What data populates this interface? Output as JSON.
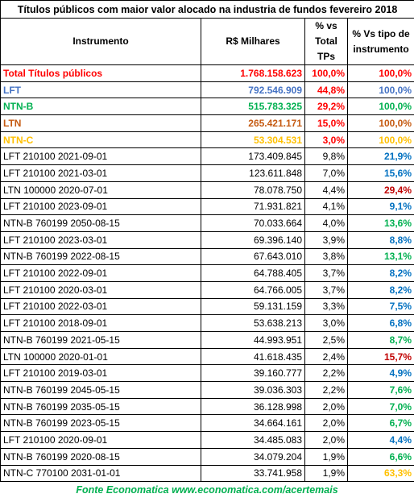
{
  "table": {
    "title": "Títulos públicos com maior valor alocado na industria de fundos fevereiro 2018",
    "header": [
      "Instrumento",
      "R$ Milhares",
      "% vs Total TPs",
      "% Vs tipo de instrumento"
    ],
    "rows": [
      {
        "cells": [
          "Total Títulos públicos",
          "1.768.158.623",
          "100,0%",
          "100,0%"
        ],
        "bold": true,
        "colors": [
          "#ff0000",
          "#ff0000",
          "#ff0000",
          "#ff0000"
        ]
      },
      {
        "cells": [
          "LFT",
          "792.546.909",
          "44,8%",
          "100,0%"
        ],
        "bold": true,
        "colors": [
          "#4472c4",
          "#4472c4",
          "#ff0000",
          "#4472c4"
        ]
      },
      {
        "cells": [
          "NTN-B",
          "515.783.325",
          "29,2%",
          "100,0%"
        ],
        "bold": true,
        "colors": [
          "#00b050",
          "#00b050",
          "#ff0000",
          "#00b050"
        ]
      },
      {
        "cells": [
          "LTN",
          "265.421.171",
          "15,0%",
          "100,0%"
        ],
        "bold": true,
        "colors": [
          "#c55a11",
          "#c55a11",
          "#ff0000",
          "#c55a11"
        ]
      },
      {
        "cells": [
          "NTN-C",
          "53.304.531",
          "3,0%",
          "100,0%"
        ],
        "bold": true,
        "colors": [
          "#ffc000",
          "#ffc000",
          "#ff0000",
          "#ffc000"
        ]
      },
      {
        "cells": [
          "LFT 210100 2021-09-01",
          "173.409.845",
          "9,8%",
          "21,9%"
        ],
        "bold": false,
        "colors": [
          "#000",
          "#000",
          "#000",
          "#0070c0"
        ]
      },
      {
        "cells": [
          "LFT 210100 2021-03-01",
          "123.611.848",
          "7,0%",
          "15,6%"
        ],
        "bold": false,
        "colors": [
          "#000",
          "#000",
          "#000",
          "#0070c0"
        ]
      },
      {
        "cells": [
          "LTN 100000 2020-07-01",
          "78.078.750",
          "4,4%",
          "29,4%"
        ],
        "bold": false,
        "colors": [
          "#000",
          "#000",
          "#000",
          "#c00000"
        ]
      },
      {
        "cells": [
          "LFT 210100 2023-09-01",
          "71.931.821",
          "4,1%",
          "9,1%"
        ],
        "bold": false,
        "colors": [
          "#000",
          "#000",
          "#000",
          "#0070c0"
        ]
      },
      {
        "cells": [
          "NTN-B 760199 2050-08-15",
          "70.033.664",
          "4,0%",
          "13,6%"
        ],
        "bold": false,
        "colors": [
          "#000",
          "#000",
          "#000",
          "#00b050"
        ]
      },
      {
        "cells": [
          "LFT 210100 2023-03-01",
          "69.396.140",
          "3,9%",
          "8,8%"
        ],
        "bold": false,
        "colors": [
          "#000",
          "#000",
          "#000",
          "#0070c0"
        ]
      },
      {
        "cells": [
          "NTN-B 760199 2022-08-15",
          "67.643.010",
          "3,8%",
          "13,1%"
        ],
        "bold": false,
        "colors": [
          "#000",
          "#000",
          "#000",
          "#00b050"
        ]
      },
      {
        "cells": [
          "LFT 210100 2022-09-01",
          "64.788.405",
          "3,7%",
          "8,2%"
        ],
        "bold": false,
        "colors": [
          "#000",
          "#000",
          "#000",
          "#0070c0"
        ]
      },
      {
        "cells": [
          "LFT 210100 2020-03-01",
          "64.766.005",
          "3,7%",
          "8,2%"
        ],
        "bold": false,
        "colors": [
          "#000",
          "#000",
          "#000",
          "#0070c0"
        ]
      },
      {
        "cells": [
          "LFT 210100 2022-03-01",
          "59.131.159",
          "3,3%",
          "7,5%"
        ],
        "bold": false,
        "colors": [
          "#000",
          "#000",
          "#000",
          "#0070c0"
        ]
      },
      {
        "cells": [
          "LFT 210100 2018-09-01",
          "53.638.213",
          "3,0%",
          "6,8%"
        ],
        "bold": false,
        "colors": [
          "#000",
          "#000",
          "#000",
          "#0070c0"
        ]
      },
      {
        "cells": [
          "NTN-B 760199 2021-05-15",
          "44.993.951",
          "2,5%",
          "8,7%"
        ],
        "bold": false,
        "colors": [
          "#000",
          "#000",
          "#000",
          "#00b050"
        ]
      },
      {
        "cells": [
          "LTN 100000 2020-01-01",
          "41.618.435",
          "2,4%",
          "15,7%"
        ],
        "bold": false,
        "colors": [
          "#000",
          "#000",
          "#000",
          "#c00000"
        ]
      },
      {
        "cells": [
          "LFT 210100 2019-03-01",
          "39.160.777",
          "2,2%",
          "4,9%"
        ],
        "bold": false,
        "colors": [
          "#000",
          "#000",
          "#000",
          "#0070c0"
        ]
      },
      {
        "cells": [
          "NTN-B 760199 2045-05-15",
          "39.036.303",
          "2,2%",
          "7,6%"
        ],
        "bold": false,
        "colors": [
          "#000",
          "#000",
          "#000",
          "#00b050"
        ]
      },
      {
        "cells": [
          "NTN-B 760199 2035-05-15",
          "36.128.998",
          "2,0%",
          "7,0%"
        ],
        "bold": false,
        "colors": [
          "#000",
          "#000",
          "#000",
          "#00b050"
        ]
      },
      {
        "cells": [
          "NTN-B 760199 2023-05-15",
          "34.664.161",
          "2,0%",
          "6,7%"
        ],
        "bold": false,
        "colors": [
          "#000",
          "#000",
          "#000",
          "#00b050"
        ]
      },
      {
        "cells": [
          "LFT 210100 2020-09-01",
          "34.485.083",
          "2,0%",
          "4,4%"
        ],
        "bold": false,
        "colors": [
          "#000",
          "#000",
          "#000",
          "#0070c0"
        ]
      },
      {
        "cells": [
          "NTN-B 760199 2020-08-15",
          "34.079.204",
          "1,9%",
          "6,6%"
        ],
        "bold": false,
        "colors": [
          "#000",
          "#000",
          "#000",
          "#00b050"
        ]
      },
      {
        "cells": [
          "NTN-C 770100 2031-01-01",
          "33.741.958",
          "1,9%",
          "63,3%"
        ],
        "bold": false,
        "colors": [
          "#000",
          "#000",
          "#000",
          "#ffc000"
        ]
      }
    ],
    "footer": "Fonte Economatica www.economatica.com/acertemais"
  }
}
